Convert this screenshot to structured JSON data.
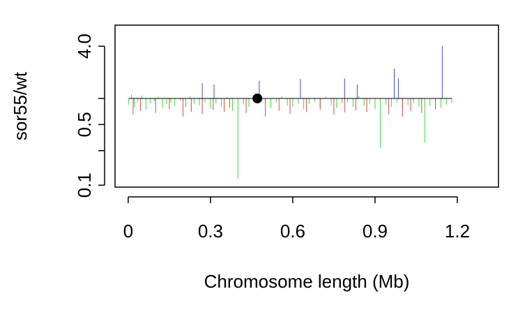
{
  "chart_data": {
    "type": "segments",
    "x_label": "Chromosome length (Mb)",
    "y_label": "sor55/wt",
    "xlim": [
      -0.048,
      1.35
    ],
    "ylim": [
      0.095,
      7
    ],
    "log_y": true,
    "baseline": 1,
    "xticks": [
      0,
      0.3,
      0.6,
      0.9,
      1.2
    ],
    "yticks": [
      0.1,
      {
        "value": 0.25,
        "label": null
      },
      0.5,
      {
        "value": 1,
        "label": null
      },
      {
        "value": 4,
        "label": "4.0"
      }
    ],
    "series": [
      {
        "name": "green",
        "color": "#33dd33",
        "x": [
          0.002,
          0.012,
          0.022,
          0.035,
          0.05,
          0.065,
          0.08,
          0.095,
          0.11,
          0.125,
          0.14,
          0.155,
          0.17,
          0.19,
          0.21,
          0.225,
          0.24,
          0.26,
          0.28,
          0.3,
          0.32,
          0.34,
          0.36,
          0.38,
          0.4,
          0.42,
          0.44,
          0.46,
          0.5,
          0.52,
          0.54,
          0.56,
          0.58,
          0.6,
          0.62,
          0.64,
          0.66,
          0.68,
          0.7,
          0.72,
          0.74,
          0.76,
          0.78,
          0.8,
          0.82,
          0.84,
          0.86,
          0.88,
          0.9,
          0.919,
          0.94,
          0.96,
          0.98,
          1.0,
          1.02,
          1.04,
          1.06,
          1.081,
          1.1,
          1.12,
          1.14,
          1.16,
          1.18
        ],
        "values": [
          0.85,
          1.1,
          0.8,
          0.9,
          1.08,
          0.75,
          0.88,
          0.92,
          1.05,
          0.78,
          0.86,
          0.9,
          0.82,
          0.95,
          0.8,
          1.06,
          0.87,
          0.84,
          0.9,
          0.76,
          0.88,
          0.8,
          1.04,
          0.72,
          0.12,
          0.85,
          0.8,
          0.92,
          0.86,
          0.78,
          0.9,
          1.06,
          0.83,
          0.8,
          0.88,
          0.75,
          0.86,
          0.92,
          0.8,
          1.05,
          0.84,
          0.78,
          0.88,
          0.9,
          0.8,
          1.07,
          0.82,
          0.86,
          0.76,
          0.27,
          0.85,
          0.8,
          0.9,
          0.78,
          0.84,
          0.88,
          0.8,
          0.31,
          0.82,
          0.9,
          0.78,
          0.85,
          0.88
        ]
      },
      {
        "name": "red",
        "color": "#dd4444",
        "x": [
          0.018,
          0.045,
          0.1,
          0.15,
          0.2,
          0.23,
          0.27,
          0.31,
          0.35,
          0.37,
          0.43,
          0.5,
          0.55,
          0.59,
          0.65,
          0.7,
          0.75,
          0.79,
          0.83,
          0.87,
          0.95,
          1.0,
          1.03,
          1.07,
          1.12
        ],
        "values": [
          0.65,
          0.72,
          0.68,
          0.75,
          0.62,
          0.7,
          0.66,
          0.74,
          0.7,
          0.78,
          0.68,
          0.62,
          0.72,
          0.66,
          0.7,
          0.74,
          0.65,
          0.69,
          0.73,
          0.7,
          0.66,
          0.62,
          0.72,
          0.68,
          0.75
        ]
      },
      {
        "name": "blue",
        "color": "#4444dd",
        "x": [
          0.27,
          0.313,
          0.478,
          0.628,
          0.789,
          0.835,
          0.97,
          0.985,
          1.145
        ],
        "values": [
          1.5,
          1.45,
          1.6,
          1.68,
          1.7,
          1.45,
          2.2,
          1.7,
          4.0
        ]
      }
    ],
    "point": {
      "x": 0.471,
      "y": 1.0
    }
  }
}
